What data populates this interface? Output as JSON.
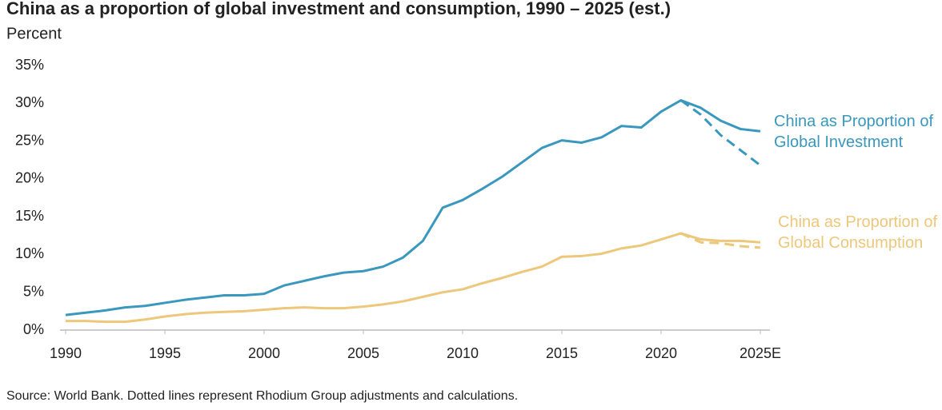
{
  "chart_data": {
    "type": "line",
    "title": "China as a proportion of global investment and consumption, 1990 – 2025 (est.)",
    "subtitle": "Percent",
    "source": "Source: World Bank. Dotted lines represent Rhodium Group adjustments and calculations.",
    "x": [
      1990,
      1991,
      1992,
      1993,
      1994,
      1995,
      1996,
      1997,
      1998,
      1999,
      2000,
      2001,
      2002,
      2003,
      2004,
      2005,
      2006,
      2007,
      2008,
      2009,
      2010,
      2011,
      2012,
      2013,
      2014,
      2015,
      2016,
      2017,
      2018,
      2019,
      2020,
      2021,
      2022,
      2023,
      2024,
      2025
    ],
    "series": [
      {
        "name": "China as Proportion of Global Investment",
        "color": "#3a97bd",
        "dashed": false,
        "values": [
          2.0,
          2.3,
          2.6,
          3.0,
          3.2,
          3.6,
          4.0,
          4.3,
          4.6,
          4.6,
          4.8,
          5.9,
          6.5,
          7.1,
          7.6,
          7.8,
          8.4,
          9.6,
          11.8,
          16.2,
          17.2,
          18.7,
          20.3,
          22.2,
          24.1,
          25.1,
          24.8,
          25.5,
          27.0,
          26.8,
          28.9,
          30.4,
          29.4,
          27.7,
          26.6,
          26.3
        ]
      },
      {
        "color": "#3a97bd",
        "dashed": true,
        "values": [
          null,
          null,
          null,
          null,
          null,
          null,
          null,
          null,
          null,
          null,
          null,
          null,
          null,
          null,
          null,
          null,
          null,
          null,
          null,
          null,
          null,
          null,
          null,
          null,
          null,
          null,
          null,
          null,
          null,
          null,
          null,
          30.4,
          28.5,
          25.8,
          23.8,
          21.8
        ]
      },
      {
        "name": "China as Proportion of Global Consumption",
        "color": "#edc77b",
        "dashed": false,
        "values": [
          1.2,
          1.2,
          1.1,
          1.1,
          1.4,
          1.8,
          2.1,
          2.3,
          2.4,
          2.5,
          2.7,
          2.9,
          3.0,
          2.9,
          2.9,
          3.1,
          3.4,
          3.8,
          4.4,
          5.0,
          5.4,
          6.2,
          6.9,
          7.7,
          8.4,
          9.7,
          9.8,
          10.1,
          10.8,
          11.2,
          12.0,
          12.8,
          12.0,
          11.8,
          11.8,
          11.6
        ]
      },
      {
        "color": "#edc77b",
        "dashed": true,
        "values": [
          null,
          null,
          null,
          null,
          null,
          null,
          null,
          null,
          null,
          null,
          null,
          null,
          null,
          null,
          null,
          null,
          null,
          null,
          null,
          null,
          null,
          null,
          null,
          null,
          null,
          null,
          null,
          null,
          null,
          null,
          null,
          12.8,
          11.6,
          11.5,
          11.1,
          10.9
        ]
      }
    ],
    "xlim": [
      1990,
      2025
    ],
    "xticks": [
      1990,
      1995,
      2000,
      2005,
      2010,
      2015,
      2020,
      {
        "value": 2025,
        "label": "2025E"
      }
    ],
    "ylim": [
      0,
      35
    ],
    "yticks": [
      {
        "value": 0,
        "label": "0%"
      },
      {
        "value": 5,
        "label": "5%"
      },
      {
        "value": 10,
        "label": "10%"
      },
      {
        "value": 15,
        "label": "15%"
      },
      {
        "value": 20,
        "label": "20%"
      },
      {
        "value": 25,
        "label": "25%"
      },
      {
        "value": 30,
        "label": "30%"
      },
      {
        "value": 35,
        "label": "35%"
      }
    ],
    "grid": false
  }
}
